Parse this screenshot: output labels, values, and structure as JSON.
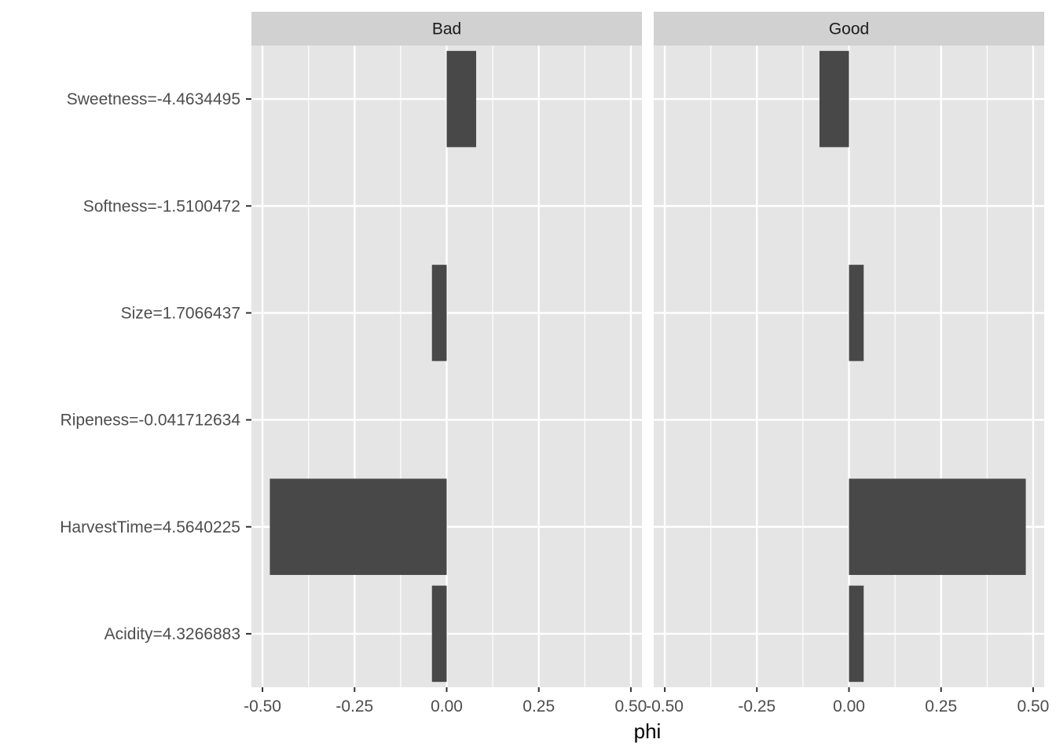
{
  "chart_data": {
    "type": "bar",
    "orientation": "horizontal",
    "xlabel": "phi",
    "ylabel": "",
    "xlim": [
      -0.53,
      0.53
    ],
    "x_ticks": [
      -0.5,
      -0.25,
      0,
      0.25,
      0.5
    ],
    "x_tick_labels": [
      "-0.50",
      "-0.25",
      "0.00",
      "0.25",
      "0.50"
    ],
    "categories": [
      "Sweetness=-4.4634495",
      "Softness=-1.5100472",
      "Size=1.7066437",
      "Ripeness=-0.041712634",
      "HarvestTime=4.5640225",
      "Acidity=4.3266883"
    ],
    "panels": [
      {
        "name": "Bad",
        "values": [
          0.08,
          0.0,
          -0.04,
          0.0,
          -0.48,
          -0.04
        ]
      },
      {
        "name": "Good",
        "values": [
          -0.08,
          0.0,
          0.04,
          0.0,
          0.48,
          0.04
        ]
      }
    ],
    "grid": true,
    "bar_color": "#484848",
    "panel_background": "#e5e5e5",
    "strip_background": "#d1d1d1"
  }
}
